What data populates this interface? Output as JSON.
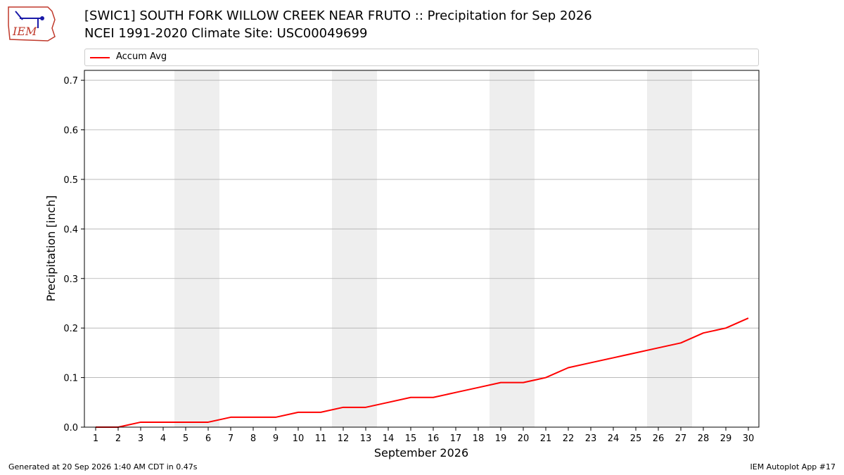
{
  "logo_text": "IEM",
  "title": "[SWIC1] SOUTH FORK WILLOW CREEK NEAR FRUTO :: Precipitation for Sep 2026",
  "subtitle": "NCEI 1991-2020 Climate Site: USC00049699",
  "footer_left": "Generated at 20 Sep 2026 1:40 AM CDT in 0.47s",
  "footer_right": "IEM Autoplot App #17",
  "colors": {
    "series": "#ff0000",
    "weekend_band": "#eeeeee",
    "grid": "#b0b0b0"
  },
  "chart_data": {
    "type": "line",
    "xlabel": "September 2026",
    "ylabel": "Precipitation [inch]",
    "x": [
      1,
      2,
      3,
      4,
      5,
      6,
      7,
      8,
      9,
      10,
      11,
      12,
      13,
      14,
      15,
      16,
      17,
      18,
      19,
      20,
      21,
      22,
      23,
      24,
      25,
      26,
      27,
      28,
      29,
      30
    ],
    "ylim": [
      0,
      0.72
    ],
    "yticks": [
      "0.0",
      "0.1",
      "0.2",
      "0.3",
      "0.4",
      "0.5",
      "0.6",
      "0.7"
    ],
    "grid": "horizontal",
    "legend_position": "top",
    "weekend_bands": [
      [
        5,
        6
      ],
      [
        12,
        13
      ],
      [
        19,
        20
      ],
      [
        26,
        27
      ]
    ],
    "series": [
      {
        "name": "Accum Avg",
        "color": "#ff0000",
        "values": [
          0.0,
          0.0,
          0.01,
          0.01,
          0.01,
          0.01,
          0.02,
          0.02,
          0.02,
          0.03,
          0.03,
          0.04,
          0.04,
          0.05,
          0.06,
          0.06,
          0.07,
          0.08,
          0.09,
          0.09,
          0.1,
          0.12,
          0.13,
          0.14,
          0.15,
          0.16,
          0.17,
          0.19,
          0.2,
          0.22
        ]
      }
    ]
  }
}
